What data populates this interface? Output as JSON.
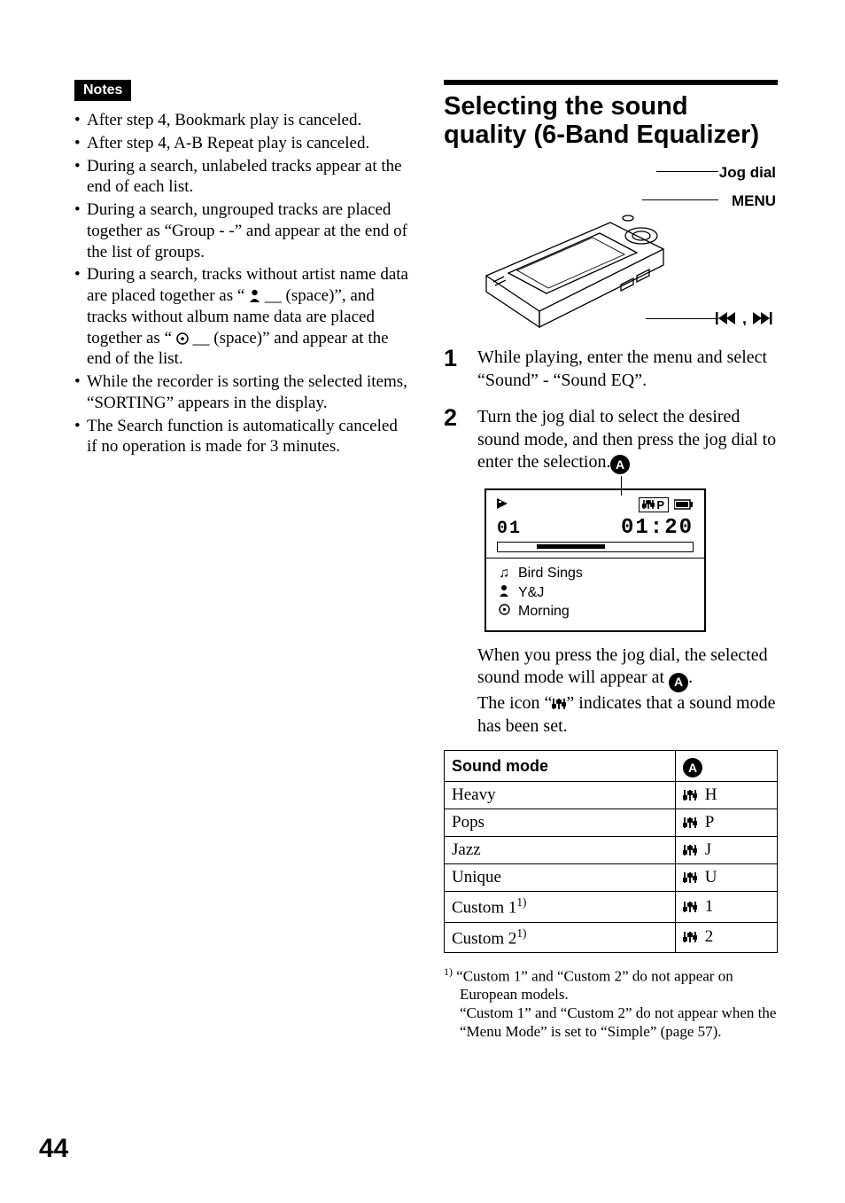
{
  "page_number": "44",
  "left": {
    "notes_label": "Notes",
    "bullets": [
      "After step 4, Bookmark play is canceled.",
      "After step 4, A-B Repeat play is canceled.",
      "During a search, unlabeled tracks appear at the end of each list.",
      "During a search, ungrouped tracks are placed together as “Group - -” and appear at the end of the list of groups.",
      "__ARTIST_ALBUM_BULLET__",
      "While the recorder is sorting the selected items, “SORTING” appears in the display.",
      "The Search function is automatically canceled if no operation is made for 3 minutes."
    ],
    "artist_album": {
      "pre": "During a search, tracks without artist name data are placed together as “ ",
      "mid1": " __ (space)”, and tracks without album name data are placed together as “ ",
      "mid2": " __ (space)” and appear at the end of the list."
    }
  },
  "right": {
    "section_title": "Selecting the sound quality (6-Band Equalizer)",
    "labels": {
      "jog": "Jog dial",
      "menu": "MENU",
      "transport": "⏮ , ⏭"
    },
    "steps": {
      "s1_num": "1",
      "s1_text": "While playing, enter the menu and select “Sound” - “Sound EQ”.",
      "s2_num": "2",
      "s2_text": "Turn the jog dial to select the desired sound mode, and then press the jog dial to enter the selection."
    },
    "lcd": {
      "callout": "A",
      "eq_box": "⫷P",
      "track_no": "01",
      "time": "01:20",
      "song": "Bird Sings",
      "artist": "Y&J",
      "album": "Morning"
    },
    "after_text_1": "When you press the jog dial, the selected sound mode will appear at ",
    "after_text_2": ".",
    "after_text_3a": "The icon “",
    "after_text_3b": "” indicates that a sound mode has been set.",
    "eq_icon_inline": "⫷",
    "table": {
      "colors": {
        "border": "#000000",
        "bg": "#ffffff",
        "text": "#000000"
      },
      "header_mode": "Sound mode",
      "header_disp": "A",
      "rows": [
        {
          "mode": "Heavy",
          "suffix": "H"
        },
        {
          "mode": "Pops",
          "suffix": "P"
        },
        {
          "mode": "Jazz",
          "suffix": "J"
        },
        {
          "mode": "Unique",
          "suffix": "U"
        },
        {
          "mode": "Custom 1",
          "sup": "1)",
          "suffix": "1"
        },
        {
          "mode": "Custom 2",
          "sup": "1)",
          "suffix": "2"
        }
      ]
    },
    "footnote_marker": "1)",
    "footnote": "“Custom 1” and “Custom 2” do not appear on European models.\n“Custom 1” and “Custom 2” do not appear when the “Menu Mode” is set to “Simple” (page 57)."
  }
}
